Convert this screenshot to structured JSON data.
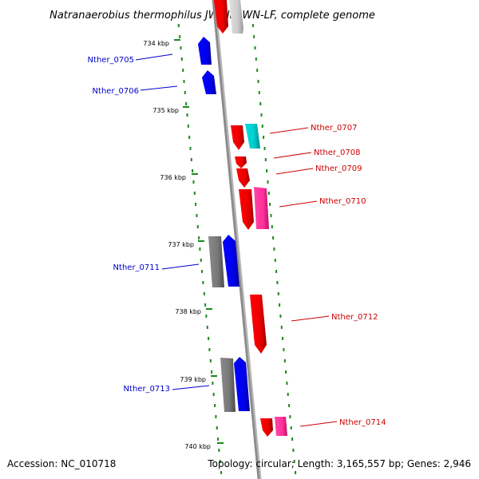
{
  "title": "Natranaerobius thermophilus JW/NM-WN-LF, complete genome",
  "footer": {
    "accession": "Accession: NC_010718",
    "summary": "Topology: circular; Length: 3,165,557 bp; Genes: 2,946"
  },
  "colors": {
    "axis": "#8a8a8a",
    "ticks": "#1a8a1a",
    "forward_label": "#cc0000",
    "reverse_label": "#0000cc",
    "red": "#ff0000",
    "blue": "#0000ff",
    "gray": "#7a7a7a",
    "light_gray": "#cccccc",
    "cyan": "#00cccc",
    "pink": "#ff3399"
  },
  "ticks": [
    "734 kbp",
    "735 kbp",
    "736 kbp",
    "737 kbp",
    "738 kbp",
    "739 kbp",
    "740 kbp"
  ],
  "gene_labels": [
    {
      "text": "Nther_0705",
      "strand": "reverse"
    },
    {
      "text": "Nther_0706",
      "strand": "reverse"
    },
    {
      "text": "Nther_0707",
      "strand": "forward"
    },
    {
      "text": "Nther_0708",
      "strand": "forward"
    },
    {
      "text": "Nther_0709",
      "strand": "forward"
    },
    {
      "text": "Nther_0710",
      "strand": "forward"
    },
    {
      "text": "Nther_0711",
      "strand": "reverse"
    },
    {
      "text": "Nther_0712",
      "strand": "forward"
    },
    {
      "text": "Nther_0713",
      "strand": "reverse"
    },
    {
      "text": "Nther_0714",
      "strand": "forward"
    }
  ]
}
